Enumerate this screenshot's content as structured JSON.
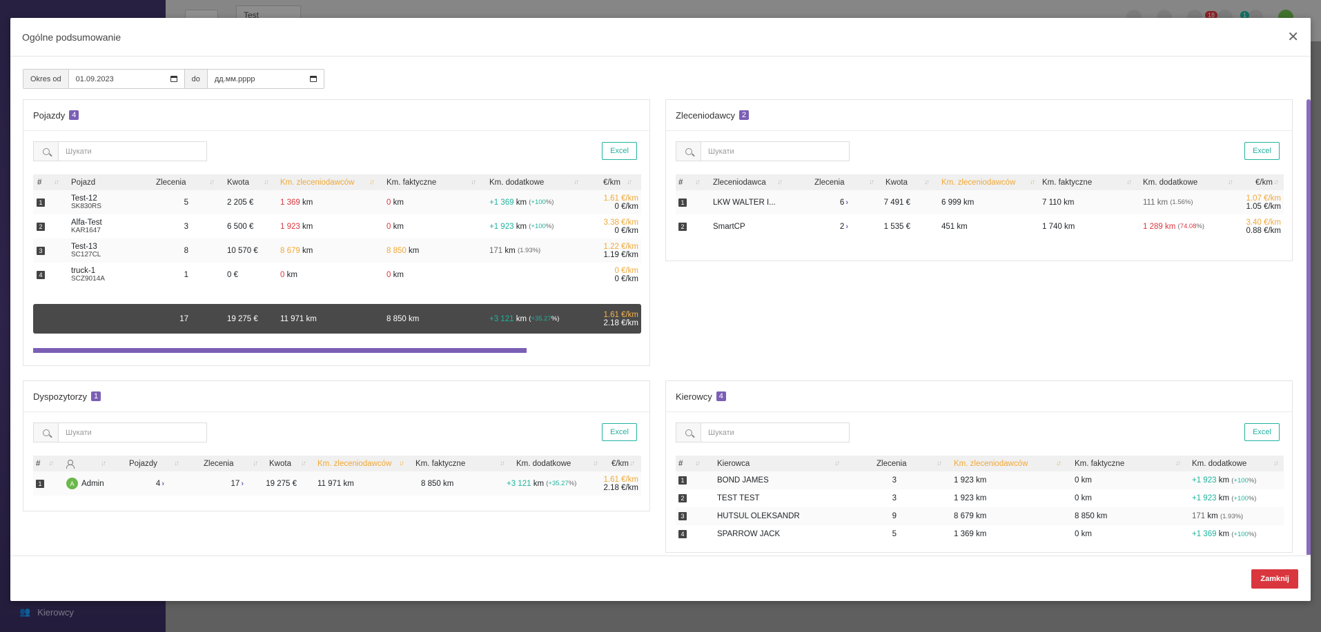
{
  "background": {
    "app_tab": "Test Transport",
    "sidebar_item": "Kierowcy",
    "notif_count_1": "18",
    "notif_count_2": "1"
  },
  "modal": {
    "title": "Ogólne podsumowanie",
    "close_button": "Zamknij",
    "period_from_label": "Okres od",
    "period_from_value": "01.09.2023",
    "period_to_label": "do",
    "period_to_value": "дд.мм.рррр"
  },
  "common": {
    "search_placeholder": "Шукати",
    "excel_label": "Excel",
    "km": "km",
    "per_km": "€/km"
  },
  "vehicles": {
    "title": "Pojazdy",
    "count": "4",
    "headers": {
      "num": "#",
      "name": "Pojazd",
      "orders": "Zlecenia",
      "amount": "Kwota",
      "km_client": "Km. zleceniodawców",
      "km_actual": "Km. faktyczne",
      "km_extra": "Km. dodatkowe",
      "eur_km": "€/km"
    },
    "rows": [
      {
        "num": "1",
        "name": "Test-12",
        "plate": "SK830RS",
        "orders": "5",
        "amount": "2 205 €",
        "km_client": "1 369",
        "km_actual": "0",
        "km_extra": "+1 369",
        "km_extra_pct": "+100",
        "rate1": "1.61 €/km",
        "rate2": "0 €/km"
      },
      {
        "num": "2",
        "name": "Alfa-Test",
        "plate": "KAR1647",
        "orders": "3",
        "amount": "6 500 €",
        "km_client": "1 923",
        "km_actual": "0",
        "km_extra": "+1 923",
        "km_extra_pct": "+100",
        "rate1": "3.38 €/km",
        "rate2": "0 €/km"
      },
      {
        "num": "3",
        "name": "Test-13",
        "plate": "SC127CL",
        "orders": "8",
        "amount": "10 570 €",
        "km_client": "8 679",
        "km_actual": "8 850",
        "km_extra": "171",
        "km_extra_pct": "1.93",
        "rate1": "1.22 €/km",
        "rate2": "1.19 €/km"
      },
      {
        "num": "4",
        "name": "truck-1",
        "plate": "SCZ9014A",
        "orders": "1",
        "amount": "0 €",
        "km_client": "0",
        "km_actual": "0",
        "km_extra": "",
        "km_extra_pct": "",
        "rate1": "0 €/km",
        "rate2": "0 €/km"
      }
    ],
    "total": {
      "orders": "17",
      "amount": "19 275 €",
      "km_client": "11 971 km",
      "km_actual": "8 850 km",
      "km_extra": "+3 121",
      "km_extra_pct": "+35.27",
      "rate1": "1.61 €/km",
      "rate2": "2.18 €/km"
    }
  },
  "clients": {
    "title": "Zleceniodawcy",
    "count": "2",
    "headers": {
      "num": "#",
      "name": "Zleceniodawca",
      "orders": "Zlecenia",
      "amount": "Kwota",
      "km_client": "Km. zleceniodawców",
      "km_actual": "Km. faktyczne",
      "km_extra": "Km. dodatkowe",
      "eur_km": "€/km"
    },
    "rows": [
      {
        "num": "1",
        "name": "LKW WALTER I...",
        "orders": "6",
        "amount": "7 491 €",
        "km_client": "6 999 km",
        "km_actual": "7 110 km",
        "km_extra": "111",
        "km_extra_pct": "1.56",
        "rate1": "1.07 €/km",
        "rate2": "1.05 €/km"
      },
      {
        "num": "2",
        "name": "SmartCP",
        "orders": "2",
        "amount": "1 535 €",
        "km_client": "451 km",
        "km_actual": "1 740 km",
        "km_extra": "1 289",
        "km_extra_pct": "74.08",
        "rate1": "3.40 €/km",
        "rate2": "0.88 €/km"
      }
    ]
  },
  "dispatchers": {
    "title": "Dyspozytorzy",
    "count": "1",
    "headers": {
      "num": "#",
      "vehicles": "Pojazdy",
      "orders": "Zlecenia",
      "amount": "Kwota",
      "km_client": "Km. zleceniodawców",
      "km_actual": "Km. faktyczne",
      "km_extra": "Km. dodatkowe",
      "eur_km": "€/km"
    },
    "rows": [
      {
        "num": "1",
        "avatar": "A",
        "name": "Admin",
        "vehicles": "4",
        "orders": "17",
        "amount": "19 275 €",
        "km_client": "11 971 km",
        "km_actual": "8 850 km",
        "km_extra": "+3 121",
        "km_extra_pct": "+35.27",
        "rate1": "1.61 €/km",
        "rate2": "2.18 €/km"
      }
    ]
  },
  "drivers": {
    "title": "Kierowcy",
    "count": "4",
    "headers": {
      "num": "#",
      "name": "Kierowca",
      "orders": "Zlecenia",
      "km_client": "Km. zleceniodawców",
      "km_actual": "Km. faktyczne",
      "km_extra": "Km. dodatkowe"
    },
    "rows": [
      {
        "num": "1",
        "name": "BOND JAMES",
        "orders": "3",
        "km_client": "1 923 km",
        "km_actual": "0 km",
        "km_extra": "+1 923",
        "km_extra_pct": "+100"
      },
      {
        "num": "2",
        "name": "TEST TEST",
        "orders": "3",
        "km_client": "1 923 km",
        "km_actual": "0 km",
        "km_extra": "+1 923",
        "km_extra_pct": "+100"
      },
      {
        "num": "3",
        "name": "HUTSUL OLEKSANDR",
        "orders": "9",
        "km_client": "8 679 km",
        "km_actual": "8 850 km",
        "km_extra": "171",
        "km_extra_pct": "1.93"
      },
      {
        "num": "4",
        "name": "SPARROW JACK",
        "orders": "5",
        "km_client": "1 369 km",
        "km_actual": "0 km",
        "km_extra": "+1 369",
        "km_extra_pct": "+100"
      }
    ]
  }
}
